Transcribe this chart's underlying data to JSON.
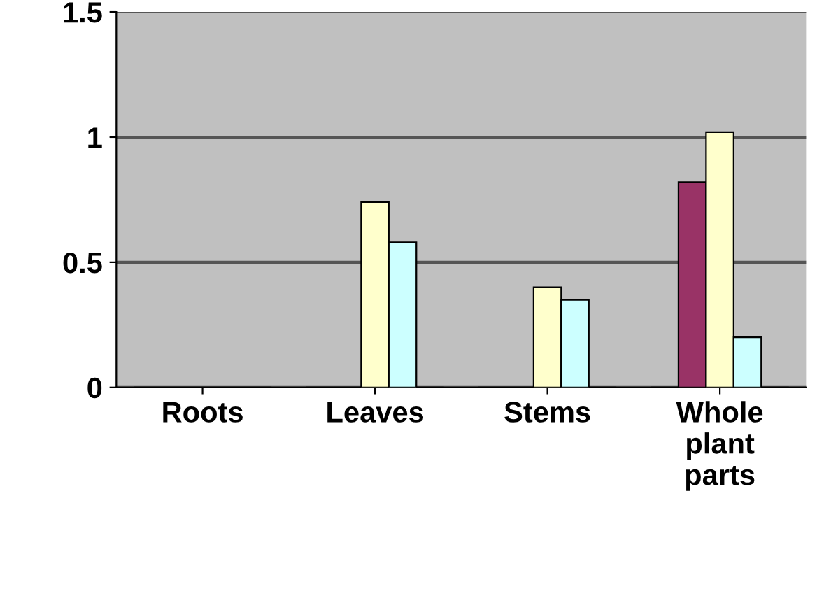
{
  "chart_data": {
    "type": "bar",
    "categories": [
      "Roots",
      "Leaves",
      "Stems",
      "Whole\nplant\nparts"
    ],
    "series": [
      {
        "color": "#6666cc",
        "values": [
          0,
          0,
          0,
          0
        ]
      },
      {
        "color": "#993366",
        "values": [
          0,
          0,
          0,
          0.82
        ]
      },
      {
        "color": "#ffffcc",
        "values": [
          0,
          0.74,
          0.4,
          1.02
        ]
      },
      {
        "color": "#ccffff",
        "values": [
          0,
          0.58,
          0.35,
          0.2
        ]
      },
      {
        "color": "#660066",
        "values": [
          0,
          0,
          0,
          0
        ]
      }
    ],
    "ylim": [
      0,
      1.5
    ],
    "yticks": [
      0,
      0.5,
      1,
      1.5
    ],
    "grid": "y"
  }
}
